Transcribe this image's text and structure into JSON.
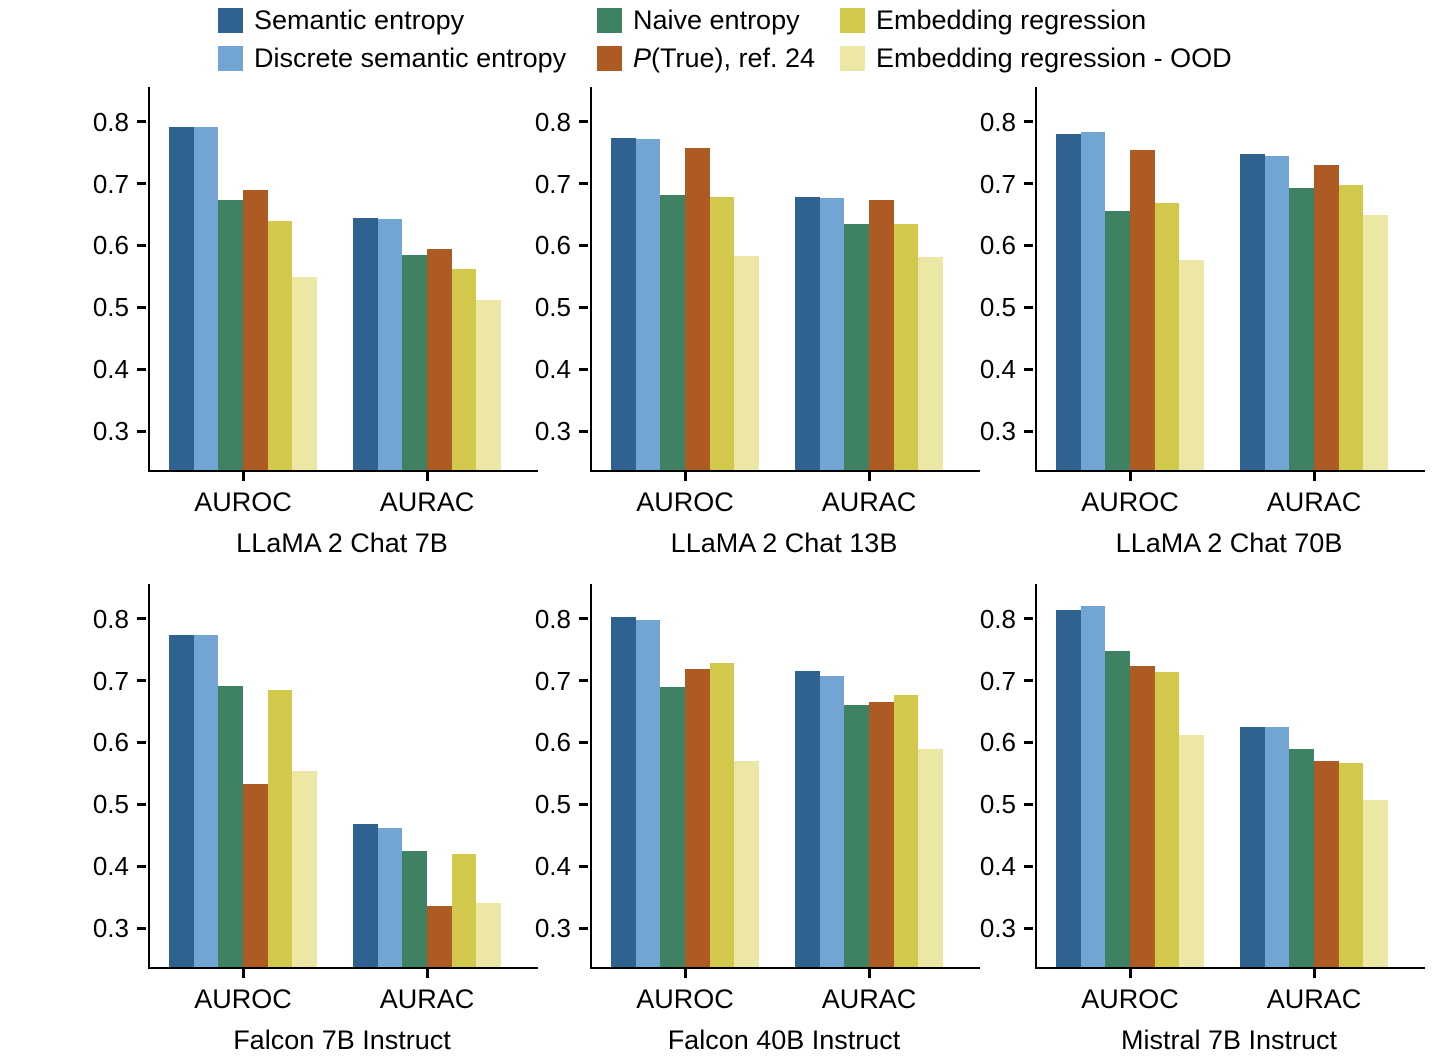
{
  "figure": {
    "background": "#ffffff"
  },
  "legend": {
    "items": [
      {
        "label": "Semantic entropy",
        "series": 0,
        "col": 0,
        "row": 0
      },
      {
        "label": "Discrete semantic entropy",
        "series": 1,
        "col": 0,
        "row": 1
      },
      {
        "label": "Naive entropy",
        "series": 2,
        "col": 1,
        "row": 0
      },
      {
        "label": "(True), ref. 24",
        "italic_prefix": "P",
        "series": 3,
        "col": 1,
        "row": 1
      },
      {
        "label": "Embedding regression",
        "series": 4,
        "col": 2,
        "row": 0
      },
      {
        "label": "Embedding regression - OOD",
        "series": 5,
        "col": 2,
        "row": 1
      }
    ]
  },
  "chart_data": {
    "type": "bar",
    "categories": [
      "AUROC",
      "AURAC"
    ],
    "ylim": [
      0.237,
      0.856
    ],
    "y_ticks": [
      0.3,
      0.4,
      0.5,
      0.6,
      0.7,
      0.8
    ],
    "grid": false,
    "legend_position": "top",
    "series_names": [
      "Semantic entropy",
      "Discrete semantic entropy",
      "Naive entropy",
      "P(True), ref. 24",
      "Embedding regression",
      "Embedding regression - OOD"
    ],
    "series_colors": [
      "#2f6191",
      "#72a5d3",
      "#3f8263",
      "#ad5b22",
      "#d2c84b",
      "#ece7a4"
    ],
    "panels": [
      {
        "title": "LLaMA 2 Chat 7B",
        "series": [
          {
            "name": "Semantic entropy",
            "values": [
              0.792,
              0.645
            ]
          },
          {
            "name": "Discrete semantic entropy",
            "values": [
              0.791,
              0.642
            ]
          },
          {
            "name": "Naive entropy",
            "values": [
              0.673,
              0.585
            ]
          },
          {
            "name": "P(True), ref. 24",
            "values": [
              0.69,
              0.594
            ]
          },
          {
            "name": "Embedding regression",
            "values": [
              0.64,
              0.562
            ]
          },
          {
            "name": "Embedding regression - OOD",
            "values": [
              0.549,
              0.511
            ]
          }
        ]
      },
      {
        "title": "LLaMA 2 Chat 13B",
        "series": [
          {
            "name": "Semantic entropy",
            "values": [
              0.773,
              0.678
            ]
          },
          {
            "name": "Discrete semantic entropy",
            "values": [
              0.772,
              0.677
            ]
          },
          {
            "name": "Naive entropy",
            "values": [
              0.682,
              0.634
            ]
          },
          {
            "name": "P(True), ref. 24",
            "values": [
              0.758,
              0.674
            ]
          },
          {
            "name": "Embedding regression",
            "values": [
              0.678,
              0.635
            ]
          },
          {
            "name": "Embedding regression - OOD",
            "values": [
              0.583,
              0.581
            ]
          }
        ]
      },
      {
        "title": "LLaMA 2 Chat 70B",
        "series": [
          {
            "name": "Semantic entropy",
            "values": [
              0.78,
              0.748
            ]
          },
          {
            "name": "Discrete semantic entropy",
            "values": [
              0.783,
              0.745
            ]
          },
          {
            "name": "Naive entropy",
            "values": [
              0.656,
              0.692
            ]
          },
          {
            "name": "P(True), ref. 24",
            "values": [
              0.755,
              0.73
            ]
          },
          {
            "name": "Embedding regression",
            "values": [
              0.668,
              0.697
            ]
          },
          {
            "name": "Embedding regression - OOD",
            "values": [
              0.576,
              0.649
            ]
          }
        ]
      },
      {
        "title": "Falcon 7B Instruct",
        "series": [
          {
            "name": "Semantic entropy",
            "values": [
              0.773,
              0.468
            ]
          },
          {
            "name": "Discrete semantic entropy",
            "values": [
              0.773,
              0.461
            ]
          },
          {
            "name": "Naive entropy",
            "values": [
              0.691,
              0.425
            ]
          },
          {
            "name": "P(True), ref. 24",
            "values": [
              0.533,
              0.335
            ]
          },
          {
            "name": "Embedding regression",
            "values": [
              0.685,
              0.419
            ]
          },
          {
            "name": "Embedding regression - OOD",
            "values": [
              0.553,
              0.34
            ]
          }
        ]
      },
      {
        "title": "Falcon 40B Instruct",
        "series": [
          {
            "name": "Semantic entropy",
            "values": [
              0.803,
              0.715
            ]
          },
          {
            "name": "Discrete semantic entropy",
            "values": [
              0.798,
              0.708
            ]
          },
          {
            "name": "Naive entropy",
            "values": [
              0.69,
              0.66
            ]
          },
          {
            "name": "P(True), ref. 24",
            "values": [
              0.718,
              0.665
            ]
          },
          {
            "name": "Embedding regression",
            "values": [
              0.729,
              0.676
            ]
          },
          {
            "name": "Embedding regression - OOD",
            "values": [
              0.57,
              0.59
            ]
          }
        ]
      },
      {
        "title": "Mistral 7B Instruct",
        "series": [
          {
            "name": "Semantic entropy",
            "values": [
              0.814,
              0.625
            ]
          },
          {
            "name": "Discrete semantic entropy",
            "values": [
              0.82,
              0.625
            ]
          },
          {
            "name": "Naive entropy",
            "values": [
              0.748,
              0.59
            ]
          },
          {
            "name": "P(True), ref. 24",
            "values": [
              0.723,
              0.57
            ]
          },
          {
            "name": "Embedding regression",
            "values": [
              0.713,
              0.567
            ]
          },
          {
            "name": "Embedding regression - OOD",
            "values": [
              0.612,
              0.507
            ]
          }
        ]
      }
    ]
  }
}
